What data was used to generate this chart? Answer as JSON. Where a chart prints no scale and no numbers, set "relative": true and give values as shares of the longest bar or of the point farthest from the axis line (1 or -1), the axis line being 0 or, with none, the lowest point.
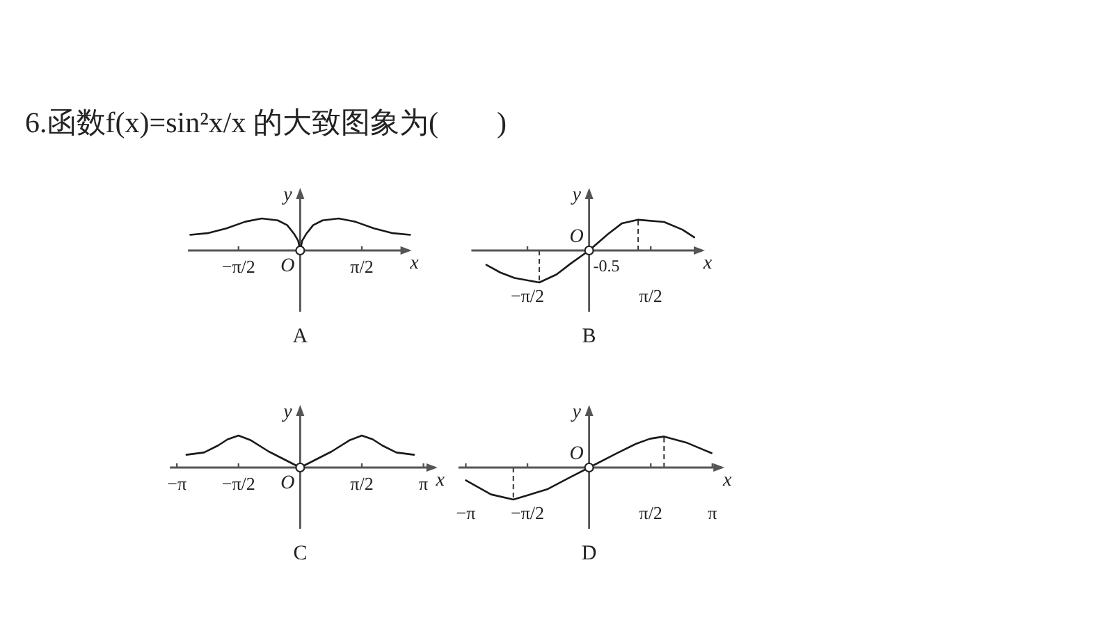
{
  "chart_data": [
    {
      "type": "line",
      "title": "6.函数f(x)=sin²x/x 的大致图象为(　　)",
      "xlabel": "x",
      "ylabel": "y",
      "relative": true,
      "xlim": [
        -2.86,
        2.84
      ],
      "xticks": [
        {
          "value": -1.5708,
          "label": "−π/2"
        },
        {
          "value": 1.5708,
          "label": "π/2"
        }
      ],
      "x": [
        -2.8,
        -2.36,
        -1.88,
        -1.4,
        -0.98,
        -0.57,
        -0.33,
        -0.15,
        -0.05,
        0,
        0.05,
        0.15,
        0.33,
        0.57,
        0.98,
        1.4,
        1.88,
        2.36,
        2.8
      ],
      "series": [
        {
          "color": "#1a1a1a",
          "values": [
            0.49,
            0.54,
            0.69,
            0.9,
            1,
            0.94,
            0.79,
            0.51,
            0.3,
            0,
            0.3,
            0.51,
            0.79,
            0.94,
            1,
            0.9,
            0.69,
            0.54,
            0.49
          ]
        }
      ],
      "annotations": [
        "A",
        "O"
      ]
    },
    {
      "type": "line",
      "xlabel": "x",
      "ylabel": "y",
      "relative": true,
      "xlim": [
        -3.0,
        2.95
      ],
      "xticks": [
        {
          "value": -1.5708,
          "label": "−π/2"
        },
        {
          "value": 1.5708,
          "label": "π/2"
        }
      ],
      "x": [
        -2.62,
        -2.26,
        -1.9,
        -1.27,
        -0.83,
        -0.47,
        0,
        0.48,
        0.84,
        1.25,
        1.91,
        2.38,
        2.68
      ],
      "series": [
        {
          "color": "#1a1a1a",
          "values": [
            -0.45,
            -0.69,
            -0.86,
            -1,
            -0.75,
            -0.41,
            0,
            0.51,
            0.85,
            0.96,
            0.89,
            0.65,
            0.41
          ]
        }
      ],
      "ref_lines": [
        {
          "axis": "x",
          "value": -1.27,
          "line_style": "dashed"
        },
        {
          "axis": "x",
          "value": 1.25,
          "line_style": "dashed"
        }
      ],
      "annotations": [
        "B",
        "O",
        "-0.5"
      ]
    },
    {
      "type": "line",
      "xlabel": "x",
      "ylabel": "y",
      "relative": true,
      "xlim": [
        -3.32,
        3.5
      ],
      "xticks": [
        {
          "value": -3.1416,
          "label": "−π"
        },
        {
          "value": -1.5708,
          "label": "−π/2"
        },
        {
          "value": 1.5708,
          "label": "π/2"
        },
        {
          "value": 3.1416,
          "label": "π"
        }
      ],
      "x": [
        -2.9,
        -2.45,
        -2.09,
        -1.85,
        -1.5708,
        -1.27,
        -0.8,
        -0.4,
        0,
        0.4,
        0.8,
        1.27,
        1.5708,
        1.85,
        2.09,
        2.45,
        2.9
      ],
      "series": [
        {
          "color": "#1a1a1a",
          "values": [
            0.4,
            0.47,
            0.69,
            0.88,
            1,
            0.86,
            0.5,
            0.25,
            0,
            0.25,
            0.5,
            0.86,
            1,
            0.88,
            0.69,
            0.47,
            0.4
          ]
        }
      ],
      "annotations": [
        "C",
        "O"
      ]
    },
    {
      "type": "line",
      "xlabel": "x",
      "ylabel": "y",
      "relative": true,
      "xlim": [
        -3.33,
        3.45
      ],
      "xticks": [
        {
          "value": -3.1416,
          "label": "−π"
        },
        {
          "value": -1.5708,
          "label": "−π/2"
        },
        {
          "value": 1.5708,
          "label": "π/2"
        },
        {
          "value": 3.1416,
          "label": "π"
        }
      ],
      "x": [
        -3.14,
        -2.5,
        -1.93,
        -1.07,
        -0.48,
        0,
        0.71,
        1.19,
        1.55,
        1.91,
        2.5,
        3.12
      ],
      "series": [
        {
          "color": "#1a1a1a",
          "values": [
            -0.4,
            -0.84,
            -1,
            -0.68,
            -0.3,
            0,
            0.45,
            0.74,
            0.9,
            0.97,
            0.77,
            0.45
          ]
        }
      ],
      "ref_lines": [
        {
          "axis": "x",
          "value": -1.93,
          "line_style": "dashed"
        },
        {
          "axis": "x",
          "value": 1.91,
          "line_style": "dashed"
        }
      ],
      "annotations": [
        "D",
        "O"
      ]
    }
  ]
}
